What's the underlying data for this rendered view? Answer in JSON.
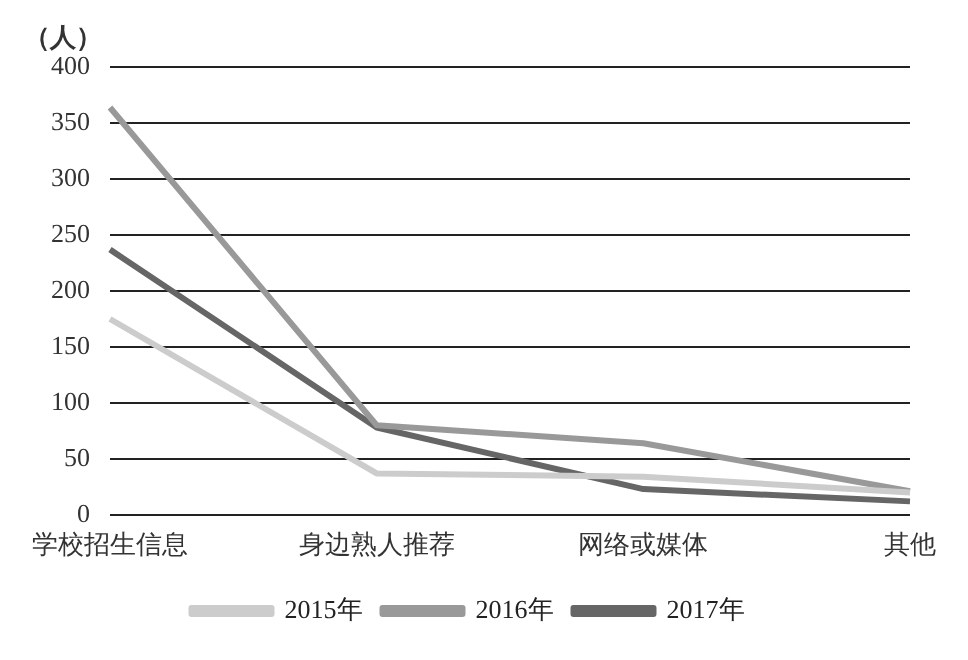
{
  "chart_data": {
    "type": "line",
    "ylabel": "（人）",
    "categories": [
      "学校招生信息",
      "身边熟人推荐",
      "网络或媒体",
      "其他"
    ],
    "series": [
      {
        "name": "2015年",
        "color": "#cccccc",
        "values": [
          175,
          37,
          34,
          20
        ]
      },
      {
        "name": "2016年",
        "color": "#999999",
        "values": [
          364,
          80,
          64,
          21
        ]
      },
      {
        "name": "2017年",
        "color": "#666666",
        "values": [
          237,
          78,
          23,
          12
        ]
      }
    ],
    "ylim": [
      0,
      400
    ],
    "yticks": [
      0,
      50,
      100,
      150,
      200,
      250,
      300,
      350,
      400
    ],
    "grid": "y",
    "legend": "bottom",
    "marker": "none",
    "line_style": "solid"
  }
}
